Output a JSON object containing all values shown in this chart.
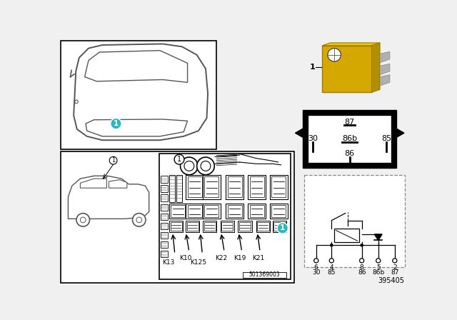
{
  "bg_color": "#f0f0f0",
  "panel_bg": "#ffffff",
  "part_number": "395405",
  "doc_number": "501369003",
  "cyan_color": "#29b8c4",
  "yellow_relay_color": "#e8c800",
  "relay_positions": [
    "K13",
    "K10",
    "K125",
    "K22",
    "K19",
    "K21"
  ],
  "pin_labels_box": [
    "87",
    "30",
    "86b",
    "85",
    "86"
  ],
  "pin_labels_schematic_top": [
    "6",
    "4",
    "8",
    "5",
    "2"
  ],
  "pin_labels_schematic_bot": [
    "30",
    "85",
    "86",
    "86b",
    "87"
  ]
}
